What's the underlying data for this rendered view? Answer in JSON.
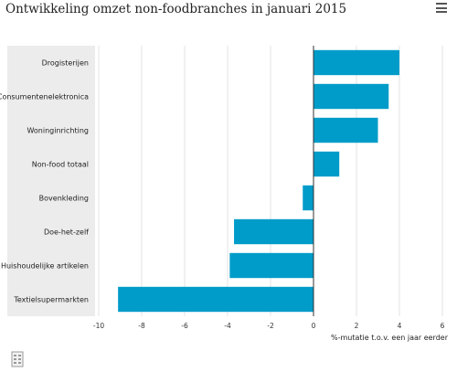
{
  "header": {
    "title": "Ontwikkeling omzet non-foodbranches in januari 2015",
    "menu_icon": "hamburger-menu-icon"
  },
  "footer": {
    "source_icon": "document-icon"
  },
  "chart_data": {
    "type": "bar",
    "orientation": "horizontal",
    "title": "Ontwikkeling omzet non-foodbranches in januari 2015",
    "xlabel": "%-mutatie t.o.v. een jaar eerder",
    "ylabel": "",
    "xlim": [
      -10,
      6
    ],
    "xticks": [
      -10,
      -8,
      -6,
      -4,
      -2,
      0,
      2,
      4,
      6
    ],
    "grid": true,
    "bar_color": "#009cc9",
    "categories": [
      "Drogisterijen",
      "Consumentenelektronica",
      "Woninginrichting",
      "Non-food totaal",
      "Bovenkleding",
      "Doe-het-zelf",
      "Huishoudelijke artikelen",
      "Textielsupermarkten"
    ],
    "values": [
      4.0,
      3.5,
      3.0,
      1.2,
      -0.5,
      -3.7,
      -3.9,
      -9.1
    ]
  }
}
